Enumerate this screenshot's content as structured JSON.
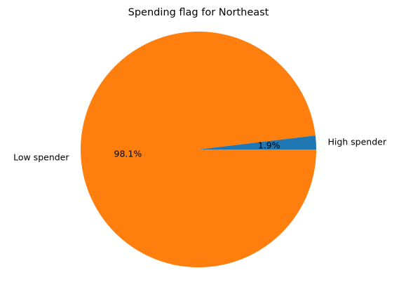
{
  "chart_data": {
    "type": "pie",
    "title": "Spending flag for Northeast",
    "labels": [
      "High spender",
      "Low spender"
    ],
    "values": [
      1.9,
      98.1
    ],
    "percent_labels": [
      "1.9%",
      "98.1%"
    ],
    "colors": [
      "#1f77b4",
      "#ff7f0e"
    ],
    "start_angle_deg": 0,
    "direction": "counterclockwise"
  }
}
